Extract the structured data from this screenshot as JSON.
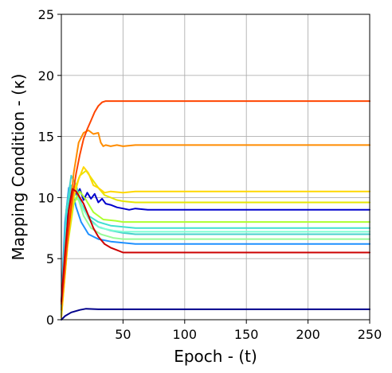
{
  "chart_data": {
    "type": "line",
    "xlabel": "Epoch - (t)",
    "ylabel": "Mapping Condition - (κ)",
    "xlim": [
      0,
      250
    ],
    "ylim": [
      0,
      25
    ],
    "xticks": [
      50,
      100,
      150,
      200,
      250
    ],
    "yticks": [
      0,
      5,
      10,
      15,
      20,
      25
    ],
    "xtick_labels": [
      "50",
      "100",
      "150",
      "200",
      "250"
    ],
    "ytick_labels": [
      "0",
      "5",
      "10",
      "15",
      "20",
      "25"
    ],
    "grid": true,
    "legend": "none",
    "series": [
      {
        "color": "#00008b",
        "x": [
          0,
          3,
          8,
          15,
          20,
          30,
          50,
          100,
          250
        ],
        "y": [
          0,
          0.3,
          0.6,
          0.8,
          0.9,
          0.85,
          0.85,
          0.85,
          0.85
        ]
      },
      {
        "color": "#0000cd",
        "x": [
          0,
          3,
          6,
          9,
          12,
          15,
          18,
          21,
          24,
          27,
          30,
          33,
          36,
          40,
          45,
          50,
          55,
          60,
          70,
          75,
          100,
          250
        ],
        "y": [
          1.2,
          6,
          9.5,
          10.8,
          10.2,
          10.7,
          9.8,
          10.4,
          9.9,
          10.3,
          9.6,
          9.9,
          9.5,
          9.4,
          9.2,
          9.1,
          9.0,
          9.1,
          9.0,
          9.0,
          9.0,
          9.0
        ]
      },
      {
        "color": "#1e90ff",
        "x": [
          0,
          3,
          6,
          9,
          12,
          16,
          22,
          30,
          40,
          50,
          60,
          100,
          250
        ],
        "y": [
          1.5,
          8,
          10.8,
          10.5,
          9.2,
          8.0,
          7.0,
          6.6,
          6.4,
          6.3,
          6.2,
          6.2,
          6.2
        ]
      },
      {
        "color": "#48d1cc",
        "x": [
          0,
          4,
          8,
          12,
          16,
          22,
          30,
          40,
          50,
          60,
          100,
          250
        ],
        "y": [
          1,
          9,
          11.8,
          11.0,
          9.5,
          8.3,
          7.6,
          7.3,
          7.1,
          7.0,
          7.0,
          7.0
        ]
      },
      {
        "color": "#40e0d0",
        "x": [
          0,
          4,
          8,
          12,
          16,
          22,
          30,
          40,
          50,
          60,
          100,
          250
        ],
        "y": [
          0.8,
          8.5,
          11.0,
          10.5,
          9.5,
          8.5,
          8.0,
          7.7,
          7.6,
          7.5,
          7.5,
          7.5
        ]
      },
      {
        "color": "#7fffd4",
        "x": [
          0,
          5,
          9,
          13,
          18,
          24,
          32,
          42,
          50,
          60,
          100,
          250
        ],
        "y": [
          0.5,
          7.5,
          10.5,
          10.0,
          9.0,
          8.0,
          7.5,
          7.3,
          7.2,
          7.2,
          7.2,
          7.2
        ]
      },
      {
        "color": "#98fb98",
        "x": [
          0,
          5,
          10,
          14,
          18,
          24,
          32,
          42,
          50,
          60,
          100,
          250
        ],
        "y": [
          0.5,
          6.5,
          10.0,
          9.8,
          8.5,
          7.5,
          7.0,
          6.7,
          6.6,
          6.6,
          6.6,
          6.6
        ]
      },
      {
        "color": "#adff2f",
        "x": [
          0,
          5,
          10,
          15,
          20,
          26,
          34,
          44,
          50,
          60,
          100,
          250
        ],
        "y": [
          0.3,
          6.0,
          9.5,
          10.5,
          9.8,
          8.8,
          8.2,
          8.1,
          8.0,
          8.0,
          8.0,
          8.0
        ]
      },
      {
        "color": "#e6e600",
        "x": [
          0,
          5,
          10,
          15,
          20,
          25,
          30,
          35,
          45,
          50,
          60,
          100,
          250
        ],
        "y": [
          0.3,
          6.5,
          10.5,
          11.8,
          12.2,
          11.5,
          10.8,
          10.2,
          9.8,
          9.7,
          9.6,
          9.6,
          9.6
        ]
      },
      {
        "color": "#ffd700",
        "x": [
          0,
          5,
          10,
          14,
          18,
          22,
          26,
          30,
          35,
          40,
          50,
          60,
          100,
          250
        ],
        "y": [
          0.2,
          6.0,
          10.0,
          11.5,
          12.5,
          12.0,
          11.0,
          10.8,
          10.4,
          10.5,
          10.4,
          10.5,
          10.5,
          10.5
        ]
      },
      {
        "color": "#ff8c00",
        "x": [
          0,
          3,
          6,
          10,
          14,
          18,
          22,
          26,
          30,
          32,
          34,
          36,
          40,
          45,
          50,
          60,
          100,
          250
        ],
        "y": [
          0.8,
          4,
          8,
          12,
          14.5,
          15.3,
          15.5,
          15.2,
          15.3,
          14.5,
          14.2,
          14.3,
          14.2,
          14.3,
          14.2,
          14.3,
          14.3,
          14.3
        ]
      },
      {
        "color": "#ff4500",
        "x": [
          0,
          3,
          6,
          9,
          12,
          15,
          18,
          21,
          24,
          27,
          30,
          33,
          36,
          45,
          60,
          100,
          250
        ],
        "y": [
          1.3,
          4.5,
          7.5,
          10.0,
          12.0,
          13.5,
          14.8,
          15.6,
          16.3,
          17.0,
          17.5,
          17.8,
          17.9,
          17.9,
          17.9,
          17.9,
          17.9
        ]
      },
      {
        "color": "#cc0000",
        "x": [
          0,
          3,
          6,
          9,
          12,
          15,
          18,
          22,
          26,
          30,
          35,
          40,
          45,
          50,
          55,
          60,
          100,
          250
        ],
        "y": [
          1.5,
          5.5,
          9.0,
          10.7,
          10.5,
          10.0,
          9.5,
          8.5,
          7.5,
          6.8,
          6.2,
          5.9,
          5.7,
          5.5,
          5.5,
          5.5,
          5.5,
          5.5
        ]
      }
    ]
  }
}
